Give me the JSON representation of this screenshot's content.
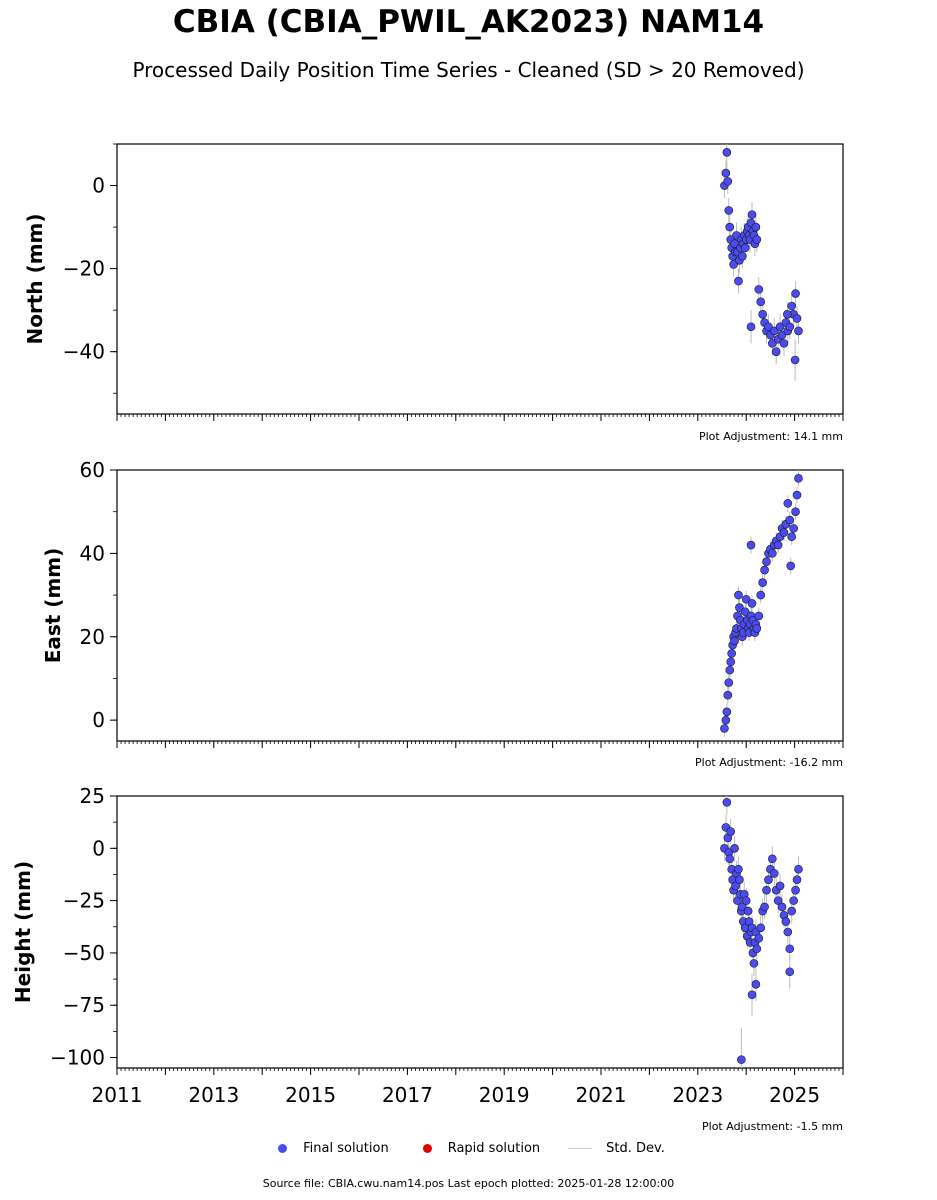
{
  "title": "CBIA (CBIA_PWIL_AK2023) NAM14",
  "subtitle": "Processed Daily Position Time Series - Cleaned (SD > 20 Removed)",
  "legend": {
    "final": "Final solution",
    "rapid": "Rapid solution",
    "std": "Std. Dev."
  },
  "colors": {
    "final": "#4b4bf2",
    "rapid": "#e00000",
    "std": "#bdbdbd"
  },
  "footer": "Source file: CBIA.cwu.nam14.pos  Last epoch plotted: 2025-01-28 12:00:00",
  "chart_data": [
    {
      "type": "scatter",
      "ylabel": "North (mm)",
      "adjustment": "Plot Adjustment: 14.1 mm",
      "xlim": [
        2011,
        2026
      ],
      "ylim": [
        -55,
        10
      ],
      "yticks": [
        0,
        -20,
        -40
      ],
      "yticklabels": [
        "0",
        "−20",
        "−40"
      ],
      "xticks": [
        2011,
        2013,
        2015,
        2017,
        2019,
        2021,
        2023,
        2025
      ],
      "xticklabels": [
        "2011",
        "2013",
        "2015",
        "2017",
        "2019",
        "2021",
        "2023",
        "2025"
      ],
      "series": [
        {
          "x": [
            2023.55,
            2023.58,
            2023.6,
            2023.62,
            2023.64,
            2023.66,
            2023.68,
            2023.7,
            2023.72,
            2023.74,
            2023.76,
            2023.78,
            2023.8,
            2023.82,
            2023.84,
            2023.86,
            2023.88,
            2023.9,
            2023.92,
            2023.94,
            2023.96,
            2023.98,
            2024.0,
            2024.02,
            2024.04,
            2024.06,
            2024.08,
            2024.1,
            2024.12,
            2024.14,
            2024.16,
            2024.18,
            2024.2,
            2024.22,
            2024.26,
            2024.3,
            2024.34,
            2024.38,
            2024.42,
            2024.46,
            2024.5,
            2024.54,
            2024.58,
            2024.62,
            2024.66,
            2024.7,
            2024.74,
            2024.78,
            2024.82,
            2024.86,
            2024.9,
            2024.94,
            2024.98,
            2025.02,
            2025.05,
            2025.08,
            2025.01,
            2024.85,
            2024.1
          ],
          "y": [
            0,
            3,
            8,
            1,
            -6,
            -10,
            -13,
            -15,
            -17,
            -19,
            -14,
            -16,
            -12,
            -16,
            -23,
            -18,
            -15,
            -13,
            -17,
            -14,
            -12,
            -15,
            -13,
            -11,
            -10,
            -12,
            -13,
            -9,
            -7,
            -11,
            -12,
            -14,
            -10,
            -13,
            -25,
            -28,
            -31,
            -33,
            -35,
            -34,
            -36,
            -38,
            -35,
            -40,
            -37,
            -34,
            -36,
            -38,
            -33,
            -35,
            -34,
            -29,
            -31,
            -26,
            -32,
            -35,
            -42,
            -31,
            -34
          ],
          "err": [
            3,
            3,
            4,
            3,
            3,
            3,
            3,
            3,
            3,
            3,
            3,
            3,
            3,
            3,
            3,
            3,
            3,
            3,
            3,
            3,
            3,
            3,
            3,
            3,
            3,
            3,
            3,
            3,
            3,
            3,
            3,
            3,
            3,
            3,
            3,
            3,
            3,
            3,
            3,
            3,
            3,
            3,
            3,
            3,
            4,
            3,
            3,
            3,
            3,
            3,
            3,
            3,
            3,
            3,
            3,
            3,
            5,
            3,
            4
          ]
        }
      ]
    },
    {
      "type": "scatter",
      "ylabel": "East (mm)",
      "adjustment": "Plot Adjustment: -16.2 mm",
      "xlim": [
        2011,
        2026
      ],
      "ylim": [
        -5,
        60
      ],
      "yticks": [
        0,
        20,
        40,
        60
      ],
      "yticklabels": [
        "0",
        "20",
        "40",
        "60"
      ],
      "xticks": [
        2011,
        2013,
        2015,
        2017,
        2019,
        2021,
        2023,
        2025
      ],
      "xticklabels": [
        "2011",
        "2013",
        "2015",
        "2017",
        "2019",
        "2021",
        "2023",
        "2025"
      ],
      "series": [
        {
          "x": [
            2023.55,
            2023.58,
            2023.6,
            2023.62,
            2023.64,
            2023.66,
            2023.68,
            2023.7,
            2023.72,
            2023.74,
            2023.76,
            2023.78,
            2023.8,
            2023.82,
            2023.84,
            2023.86,
            2023.88,
            2023.9,
            2023.92,
            2023.94,
            2023.96,
            2023.98,
            2024.0,
            2024.02,
            2024.04,
            2024.06,
            2024.08,
            2024.1,
            2024.12,
            2024.14,
            2024.16,
            2024.18,
            2024.2,
            2024.22,
            2024.26,
            2024.3,
            2024.34,
            2024.38,
            2024.42,
            2024.46,
            2024.5,
            2024.54,
            2024.58,
            2024.62,
            2024.66,
            2024.7,
            2024.74,
            2024.78,
            2024.82,
            2024.86,
            2024.9,
            2024.94,
            2024.98,
            2025.02,
            2025.05,
            2025.08,
            2024.1,
            2024.92
          ],
          "y": [
            -2,
            0,
            2,
            6,
            9,
            12,
            14,
            16,
            18,
            20,
            19,
            21,
            22,
            25,
            30,
            27,
            24,
            22,
            20,
            21,
            23,
            26,
            29,
            24,
            22,
            21,
            23,
            25,
            28,
            24,
            22,
            21,
            23,
            22,
            25,
            30,
            33,
            36,
            38,
            40,
            41,
            40,
            42,
            43,
            42,
            44,
            46,
            45,
            47,
            52,
            48,
            44,
            46,
            50,
            54,
            58,
            42,
            37
          ],
          "err": [
            2,
            2,
            2,
            2,
            2,
            2,
            2,
            2,
            2,
            2,
            2,
            2,
            2,
            2,
            2,
            2,
            2,
            2,
            2,
            2,
            2,
            2,
            2,
            2,
            2,
            2,
            2,
            2,
            2,
            2,
            2,
            2,
            2,
            2,
            2,
            2,
            2,
            2,
            2,
            2,
            2,
            2,
            2,
            2,
            2,
            2,
            2,
            2,
            2,
            2,
            2,
            2,
            2,
            2,
            2,
            2,
            2,
            2
          ]
        }
      ]
    },
    {
      "type": "scatter",
      "ylabel": "Height (mm)",
      "adjustment": "Plot Adjustment: -1.5 mm",
      "xlim": [
        2011,
        2026
      ],
      "ylim": [
        -105,
        25
      ],
      "yticks": [
        25,
        0,
        -25,
        -50,
        -75,
        -100
      ],
      "yticklabels": [
        "25",
        "0",
        "−25",
        "−50",
        "−75",
        "−100"
      ],
      "xticks": [
        2011,
        2013,
        2015,
        2017,
        2019,
        2021,
        2023,
        2025
      ],
      "xticklabels": [
        "2011",
        "2013",
        "2015",
        "2017",
        "2019",
        "2021",
        "2023",
        "2025"
      ],
      "series": [
        {
          "x": [
            2023.55,
            2023.58,
            2023.6,
            2023.62,
            2023.64,
            2023.66,
            2023.68,
            2023.7,
            2023.72,
            2023.74,
            2023.76,
            2023.78,
            2023.8,
            2023.82,
            2023.84,
            2023.86,
            2023.88,
            2023.9,
            2023.92,
            2023.94,
            2023.96,
            2023.98,
            2024.0,
            2024.02,
            2024.04,
            2024.06,
            2024.08,
            2024.1,
            2024.12,
            2024.14,
            2024.16,
            2024.18,
            2024.2,
            2024.22,
            2024.26,
            2024.3,
            2024.34,
            2024.38,
            2024.42,
            2024.46,
            2024.5,
            2024.54,
            2024.58,
            2024.62,
            2024.66,
            2024.7,
            2024.74,
            2024.78,
            2024.82,
            2024.86,
            2024.9,
            2024.94,
            2024.98,
            2025.02,
            2025.05,
            2025.08,
            2023.9,
            2024.12,
            2024.2,
            2024.9
          ],
          "y": [
            0,
            10,
            22,
            5,
            -2,
            -5,
            8,
            -10,
            -15,
            -20,
            0,
            -18,
            -12,
            -25,
            -10,
            -15,
            -22,
            -30,
            -28,
            -35,
            -22,
            -38,
            -25,
            -42,
            -30,
            -35,
            -45,
            -40,
            -38,
            -50,
            -55,
            -45,
            -40,
            -48,
            -43,
            -38,
            -30,
            -28,
            -20,
            -15,
            -10,
            -5,
            -12,
            -20,
            -25,
            -18,
            -28,
            -32,
            -35,
            -40,
            -48,
            -30,
            -25,
            -20,
            -15,
            -10,
            -101,
            -70,
            -65,
            -59
          ],
          "err": [
            6,
            6,
            6,
            6,
            6,
            6,
            6,
            6,
            6,
            6,
            6,
            6,
            6,
            6,
            6,
            6,
            6,
            6,
            6,
            6,
            6,
            6,
            6,
            6,
            6,
            6,
            6,
            6,
            6,
            6,
            6,
            6,
            6,
            6,
            6,
            6,
            6,
            6,
            6,
            6,
            6,
            6,
            6,
            6,
            6,
            6,
            6,
            6,
            6,
            6,
            6,
            6,
            6,
            6,
            6,
            6,
            15,
            10,
            8,
            8
          ]
        }
      ]
    }
  ]
}
